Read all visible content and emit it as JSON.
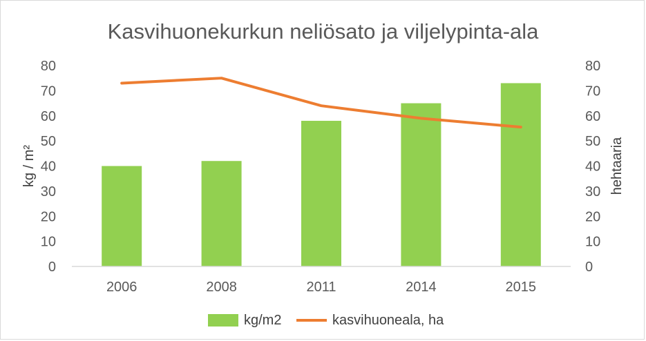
{
  "chart_data": {
    "type": "bar",
    "title": "Kasvihuonekurkun neliösato ja viljelypinta-ala",
    "categories": [
      "2006",
      "2008",
      "2011",
      "2014",
      "2015"
    ],
    "series": [
      {
        "name": "kg/m2",
        "type": "bar",
        "axis": "left",
        "color": "#92d050",
        "values": [
          40,
          42,
          58,
          65,
          73
        ]
      },
      {
        "name": "kasvihuoneala, ha",
        "type": "line",
        "axis": "right",
        "color": "#ed7d31",
        "values": [
          73,
          75,
          64,
          59,
          55.5
        ]
      }
    ],
    "ylabel": "kg / m²",
    "ylabel_right": "hehtaaria",
    "ylim": [
      0,
      80
    ],
    "ylim_right": [
      0,
      80
    ],
    "yticks": [
      0,
      10,
      20,
      30,
      40,
      50,
      60,
      70,
      80
    ],
    "grid": false,
    "legend_position": "bottom"
  }
}
